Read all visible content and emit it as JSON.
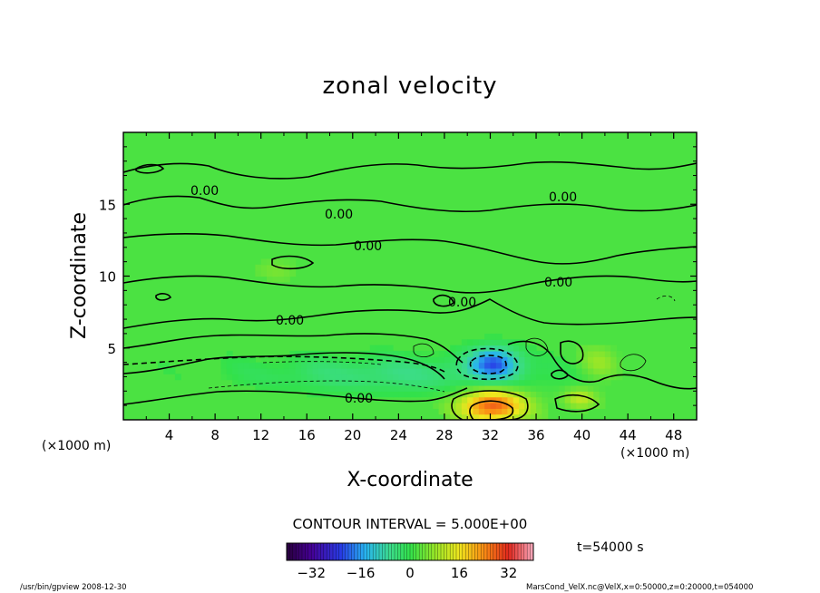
{
  "chart_data": {
    "type": "heatmap",
    "title": "zonal velocity",
    "xlabel": "X-coordinate",
    "ylabel": "Z-coordinate",
    "x_unit": "(×1000 m)",
    "y_unit": "(×1000 m)",
    "xlim": [
      0,
      50
    ],
    "ylim": [
      0,
      20
    ],
    "x_ticks": [
      4,
      8,
      12,
      16,
      20,
      24,
      28,
      32,
      36,
      40,
      44,
      48
    ],
    "y_ticks": [
      5,
      10,
      15
    ],
    "contour_interval_text": "CONTOUR INTERVAL = 5.000E+00",
    "contour_label": "0.00",
    "time_text": "t=54000 s",
    "colorbar": {
      "range": [
        -40,
        40
      ],
      "ticks": [
        -32,
        -16,
        0,
        16,
        32
      ]
    },
    "background_value": 2,
    "features": [
      {
        "x": 32.2,
        "z": 1.0,
        "sx": 2.0,
        "sz": 0.8,
        "value": 26
      },
      {
        "x": 32.4,
        "z": 4.0,
        "sx": 1.5,
        "sz": 0.8,
        "value": -20
      },
      {
        "x": 24,
        "z": 3.2,
        "sx": 9.0,
        "sz": 0.9,
        "value": -7
      },
      {
        "x": 39.8,
        "z": 1.5,
        "sx": 1.0,
        "sz": 0.5,
        "value": 10
      },
      {
        "x": 41.5,
        "z": 4.0,
        "sx": 1.2,
        "sz": 0.8,
        "value": 6
      },
      {
        "x": 13.5,
        "z": 10.5,
        "sx": 1.2,
        "sz": 0.6,
        "value": 4
      }
    ],
    "footer_left": "/usr/bin/gpview  2008-12-30",
    "footer_right": "MarsCond_VelX.nc@VelX,x=0:50000,z=0:20000,t=054000"
  },
  "colors": {
    "frame": "#000000",
    "background_green": "#33e04a"
  }
}
